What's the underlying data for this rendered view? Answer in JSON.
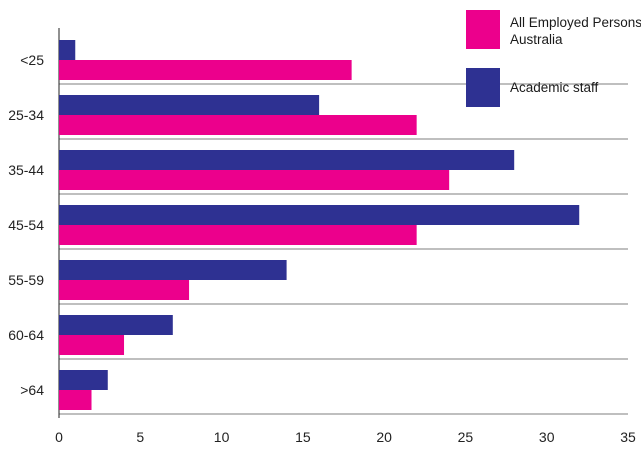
{
  "chart_data": {
    "type": "bar",
    "orientation": "horizontal",
    "categories": [
      "<25",
      "25-34",
      "35-44",
      "45-54",
      "55-59",
      "60-64",
      ">64"
    ],
    "series": [
      {
        "name": "Academic staff",
        "color": "#2e3192",
        "values": [
          1,
          16,
          28,
          32,
          14,
          7,
          3
        ]
      },
      {
        "name": "All Employed Persons Australia",
        "name_lines": [
          "All Employed Persons",
          "Australia"
        ],
        "color": "#ec008c",
        "values": [
          18,
          22,
          24,
          22,
          8,
          4,
          2
        ]
      }
    ],
    "xlim": [
      0,
      35
    ],
    "xticks": [
      0,
      5,
      10,
      15,
      20,
      25,
      30,
      35
    ],
    "legend_position": "top-right",
    "gridlines": "horizontal"
  }
}
